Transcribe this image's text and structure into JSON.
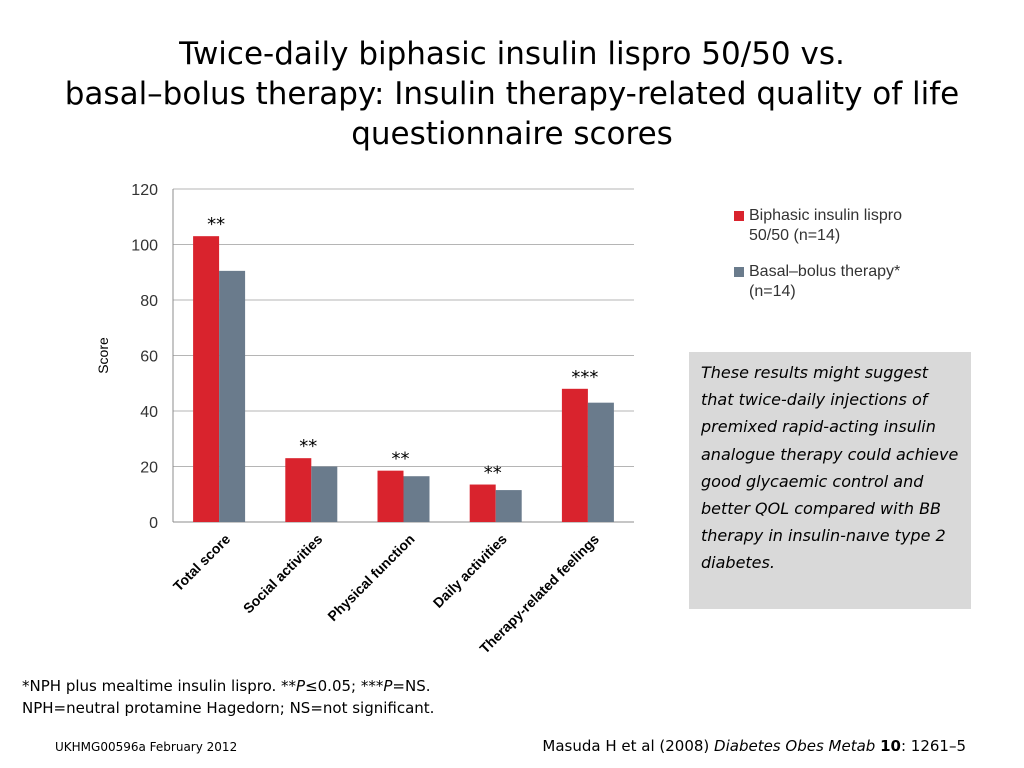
{
  "slide": {
    "title_lines": [
      "Twice-daily biphasic insulin lispro 50/50 vs.",
      "basal–bolus therapy: Insulin therapy-related quality of life",
      "questionnaire scores"
    ],
    "note": "These results might suggest that twice-daily injections of premixed rapid-acting insulin analogue therapy could achieve good glycaemic control and better QOL compared with BB therapy in insulin-naıve type 2 diabetes.",
    "footnote": {
      "line1_a": "*NPH plus mealtime insulin lispro. **",
      "line1_p1": "P",
      "line1_b": "≤0.05; ***",
      "line1_p2": "P",
      "line1_c": "=NS.",
      "line2": "NPH=neutral protamine Hagedorn; NS=not significant."
    },
    "footer_code": "UKHMG00596a February 2012",
    "citation": {
      "authors": "Masuda H et al (2008) ",
      "journal": "Diabetes Obes Metab",
      "space": " ",
      "volume": "10",
      "pages": ": 1261–5"
    }
  },
  "chart_data": {
    "type": "bar",
    "ylabel": "Score",
    "xlabel": "",
    "ylim": [
      0,
      120
    ],
    "yticks": [
      0,
      20,
      40,
      60,
      80,
      100,
      120
    ],
    "grid": true,
    "categories": [
      "Total score",
      "Social activities",
      "Physical function",
      "Daily activities",
      "Therapy-related feelings"
    ],
    "series": [
      {
        "name": "Biphasic insulin lispro 50/50 (n=14)",
        "legend_lines": [
          "Biphasic insulin lispro",
          "50/50 (n=14)"
        ],
        "color": "#d9232d",
        "values": [
          103,
          23,
          18.5,
          13.5,
          48
        ]
      },
      {
        "name": "Basal–bolus therapy* (n=14)",
        "legend_lines": [
          "Basal–bolus therapy*",
          "(n=14)"
        ],
        "color": "#6a7b8c",
        "values": [
          90.5,
          20,
          16.5,
          11.5,
          43
        ]
      }
    ],
    "annotations": [
      "**",
      "**",
      "**",
      "**",
      "***"
    ],
    "legend_position": "right"
  }
}
